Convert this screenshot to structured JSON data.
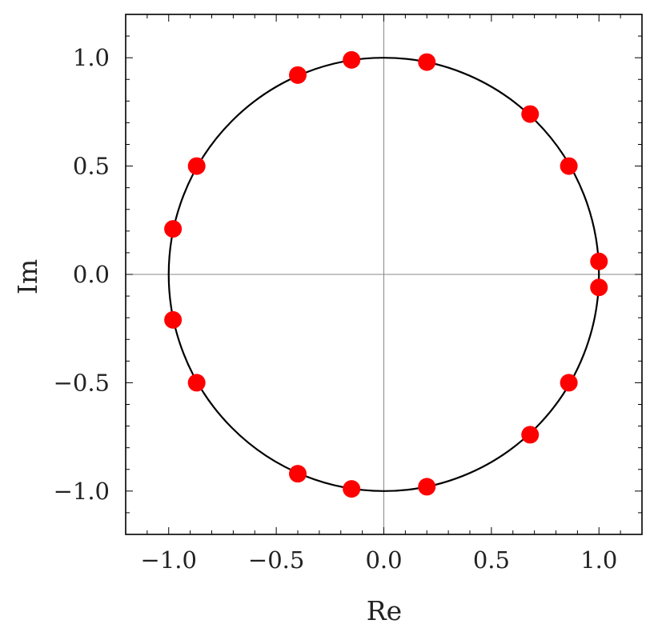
{
  "chart_data": {
    "type": "scatter",
    "title": "",
    "xlabel": "Re",
    "ylabel": "Im",
    "xlim": [
      -1.2,
      1.2
    ],
    "ylim": [
      -1.2,
      1.2
    ],
    "xticks": [
      -1.0,
      -0.5,
      0.0,
      0.5,
      1.0
    ],
    "yticks": [
      -1.0,
      -0.5,
      0.0,
      0.5,
      1.0
    ],
    "xtick_labels": [
      "−1.0",
      "−0.5",
      "0.0",
      "0.5",
      "1.0"
    ],
    "ytick_labels": [
      "−1.0",
      "−0.5",
      "0.0",
      "0.5",
      "1.0"
    ],
    "grid": false,
    "reference_curve": {
      "shape": "unit circle",
      "center": [
        0,
        0
      ],
      "radius": 1.0,
      "color": "#000000"
    },
    "axis_lines": {
      "x": 0,
      "y": 0,
      "color": "#888888"
    },
    "series": [
      {
        "color": "#ff0000",
        "points": [
          {
            "x": 1.0,
            "y": 0.06
          },
          {
            "x": 1.0,
            "y": -0.06
          },
          {
            "x": 0.86,
            "y": 0.5
          },
          {
            "x": 0.86,
            "y": -0.5
          },
          {
            "x": 0.68,
            "y": 0.74
          },
          {
            "x": 0.68,
            "y": -0.74
          },
          {
            "x": 0.2,
            "y": 0.98
          },
          {
            "x": 0.2,
            "y": -0.98
          },
          {
            "x": -0.15,
            "y": 0.99
          },
          {
            "x": -0.15,
            "y": -0.99
          },
          {
            "x": -0.4,
            "y": 0.92
          },
          {
            "x": -0.4,
            "y": -0.92
          },
          {
            "x": -0.87,
            "y": 0.5
          },
          {
            "x": -0.87,
            "y": -0.5
          },
          {
            "x": -0.98,
            "y": 0.21
          },
          {
            "x": -0.98,
            "y": -0.21
          }
        ]
      }
    ]
  }
}
